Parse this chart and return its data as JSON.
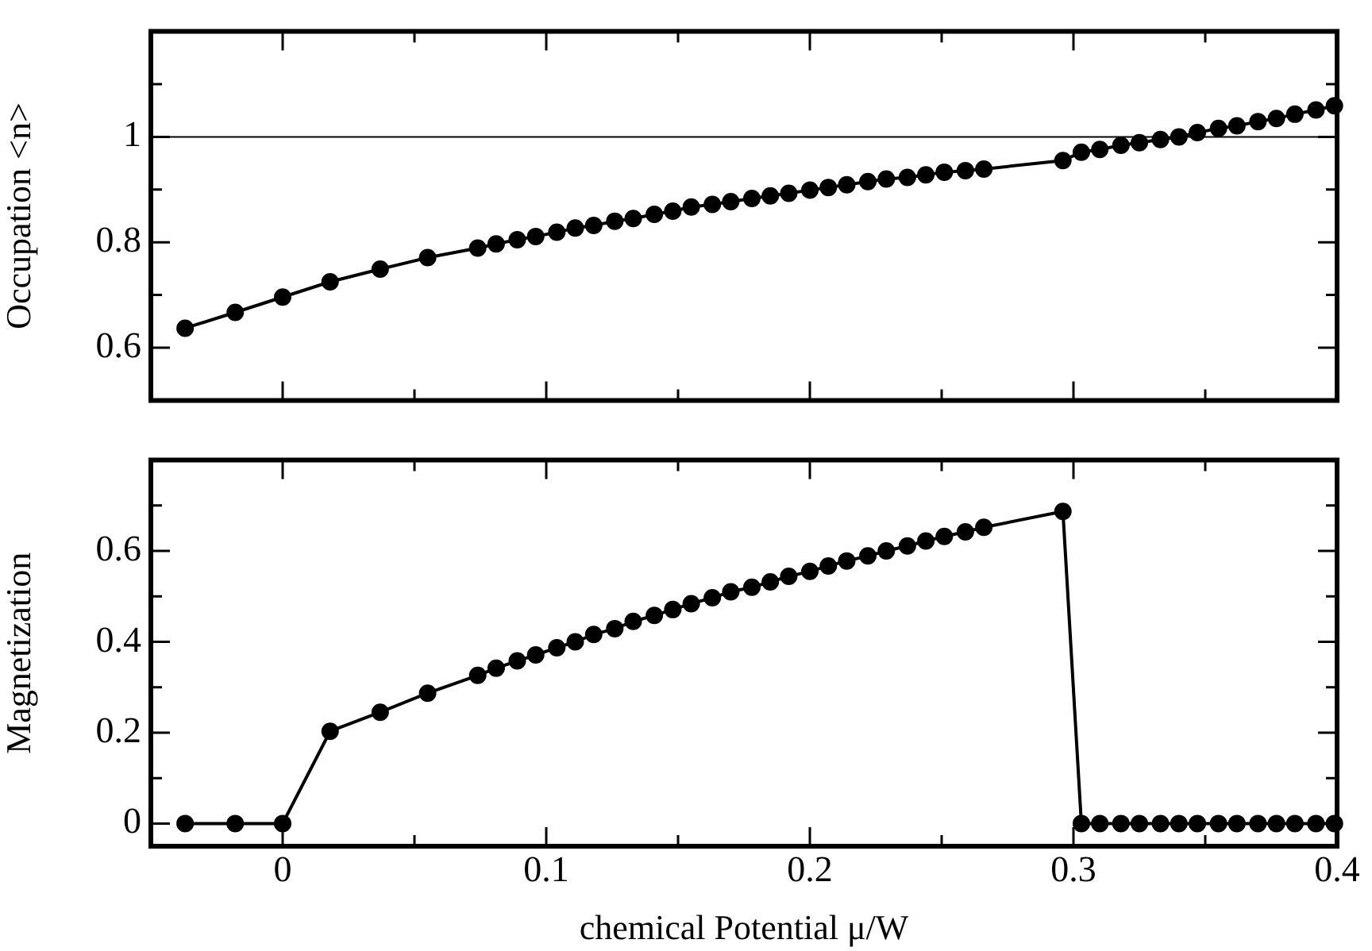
{
  "chart_data": [
    {
      "type": "line",
      "ylabel": "Occupation <n>",
      "color": "#000000",
      "marker": "circle",
      "tick_labels": "y",
      "x": [
        -0.037,
        -0.018,
        0,
        0.018,
        0.037,
        0.055,
        0.074,
        0.081,
        0.089,
        0.096,
        0.104,
        0.111,
        0.118,
        0.126,
        0.133,
        0.141,
        0.148,
        0.155,
        0.163,
        0.17,
        0.178,
        0.185,
        0.192,
        0.2,
        0.207,
        0.214,
        0.222,
        0.229,
        0.237,
        0.244,
        0.251,
        0.259,
        0.266,
        0.296,
        0.303,
        0.31,
        0.318,
        0.325,
        0.333,
        0.34,
        0.347,
        0.355,
        0.362,
        0.37,
        0.377,
        0.384,
        0.392,
        0.399
      ],
      "values": [
        0.637,
        0.667,
        0.696,
        0.725,
        0.749,
        0.771,
        0.789,
        0.797,
        0.805,
        0.811,
        0.819,
        0.827,
        0.832,
        0.84,
        0.845,
        0.853,
        0.859,
        0.867,
        0.872,
        0.877,
        0.883,
        0.888,
        0.893,
        0.899,
        0.904,
        0.909,
        0.915,
        0.92,
        0.923,
        0.928,
        0.933,
        0.936,
        0.939,
        0.955,
        0.971,
        0.976,
        0.984,
        0.989,
        0.995,
        1.0,
        1.008,
        1.016,
        1.021,
        1.029,
        1.035,
        1.043,
        1.051,
        1.059
      ],
      "xlim": [
        -0.05,
        0.4
      ],
      "xticks": [
        0,
        {
          "value": 0.05,
          "label": null
        },
        0.1,
        {
          "value": 0.15,
          "label": null
        },
        0.2,
        {
          "value": 0.25,
          "label": null
        },
        0.3,
        {
          "value": 0.35,
          "label": null
        },
        0.4
      ],
      "ylim": [
        0.5,
        1.2
      ],
      "yticks": [
        0.6,
        {
          "value": 0.7,
          "label": null
        },
        0.8,
        {
          "value": 0.9,
          "label": null
        },
        1,
        {
          "value": 1.1,
          "label": null
        }
      ],
      "ref_lines": [
        {
          "axis": "y",
          "value": 1,
          "color": "#000000"
        }
      ]
    },
    {
      "type": "line",
      "xlabel": "chemical Potential μ/W",
      "ylabel": "Magnetization",
      "color": "#000000",
      "marker": "circle",
      "x": [
        -0.037,
        -0.018,
        0,
        0.018,
        0.037,
        0.055,
        0.074,
        0.081,
        0.089,
        0.096,
        0.104,
        0.111,
        0.118,
        0.126,
        0.133,
        0.141,
        0.148,
        0.155,
        0.163,
        0.17,
        0.178,
        0.185,
        0.192,
        0.2,
        0.207,
        0.214,
        0.222,
        0.229,
        0.237,
        0.244,
        0.251,
        0.259,
        0.266,
        0.296,
        0.303,
        0.31,
        0.318,
        0.325,
        0.333,
        0.34,
        0.347,
        0.355,
        0.362,
        0.37,
        0.377,
        0.384,
        0.392,
        0.399
      ],
      "values": [
        0,
        0,
        0,
        0.203,
        0.245,
        0.287,
        0.326,
        0.342,
        0.358,
        0.371,
        0.387,
        0.4,
        0.416,
        0.429,
        0.445,
        0.458,
        0.471,
        0.484,
        0.497,
        0.51,
        0.52,
        0.532,
        0.544,
        0.555,
        0.567,
        0.578,
        0.589,
        0.6,
        0.611,
        0.622,
        0.632,
        0.642,
        0.652,
        0.687,
        0,
        0,
        0,
        0,
        0,
        0,
        0,
        0,
        0,
        0,
        0,
        0,
        0,
        0
      ],
      "xlim": [
        -0.05,
        0.4
      ],
      "xticks": [
        0,
        {
          "value": 0.05,
          "label": null
        },
        0.1,
        {
          "value": 0.15,
          "label": null
        },
        0.2,
        {
          "value": 0.25,
          "label": null
        },
        0.3,
        {
          "value": 0.35,
          "label": null
        },
        0.4
      ],
      "ylim": [
        -0.05,
        0.8
      ],
      "yticks": [
        0,
        {
          "value": 0.1,
          "label": null
        },
        0.2,
        {
          "value": 0.3,
          "label": null
        },
        0.4,
        {
          "value": 0.5,
          "label": null
        },
        0.6,
        {
          "value": 0.7,
          "label": null
        }
      ]
    }
  ]
}
